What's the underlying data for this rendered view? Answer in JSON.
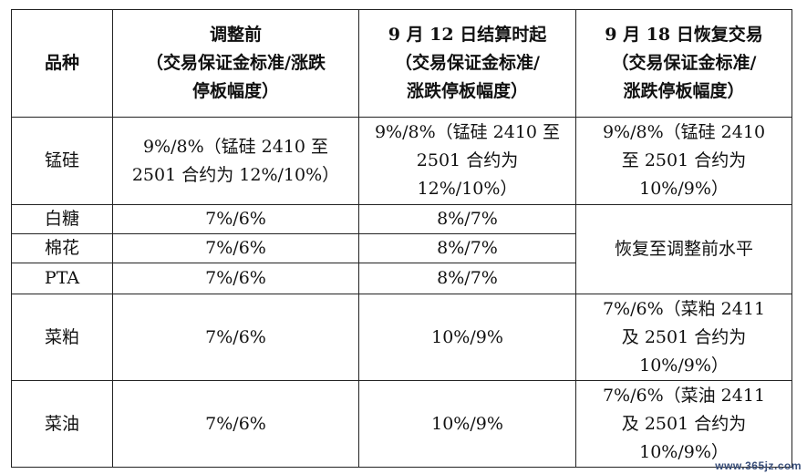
{
  "headers": [
    {
      "lines": [
        "品种"
      ]
    },
    {
      "lines": [
        "调整前",
        "（交易保证金标准/涨跌",
        "停板幅度）"
      ]
    },
    {
      "lines": [
        "9 月 12 日结算时起",
        "（交易保证金标准/",
        "涨跌停板幅度）"
      ]
    },
    {
      "lines": [
        "9 月 18 日恢复交易",
        "（交易保证金标准/",
        "涨跌停板幅度）"
      ]
    }
  ],
  "rows": [
    {
      "variety": "锰硅",
      "before": [
        "9%/8%（锰硅 2410 至",
        "2501 合约为 12%/10%）"
      ],
      "sep12": [
        "9%/8%（锰硅 2410 至",
        "2501 合约为",
        "12%/10%）"
      ],
      "sep18": [
        "9%/8%（锰硅 2410",
        "至 2501 合约为",
        "10%/9%）"
      ]
    },
    {
      "variety": "白糖",
      "before": [
        "7%/6%"
      ],
      "sep12": [
        "8%/7%"
      ]
    },
    {
      "variety": "棉花",
      "before": [
        "7%/6%"
      ],
      "sep12": [
        "8%/7%"
      ]
    },
    {
      "variety": "PTA",
      "before": [
        "7%/6%"
      ],
      "sep12": [
        "8%/7%"
      ]
    },
    {
      "variety": "菜粕",
      "before": [
        "7%/6%"
      ],
      "sep12": [
        "10%/9%"
      ],
      "sep18": [
        "7%/6%（菜粕 2411",
        "及 2501 合约为",
        "10%/9%）"
      ]
    },
    {
      "variety": "菜油",
      "before": [
        "7%/6%"
      ],
      "sep12": [
        "10%/9%"
      ],
      "sep18": [
        "7%/6%（菜油 2411",
        "及 2501 合约为",
        "10%/9%）"
      ]
    }
  ],
  "merged_sep18": "恢复至调整前水平",
  "watermark": "www.365jz.com"
}
